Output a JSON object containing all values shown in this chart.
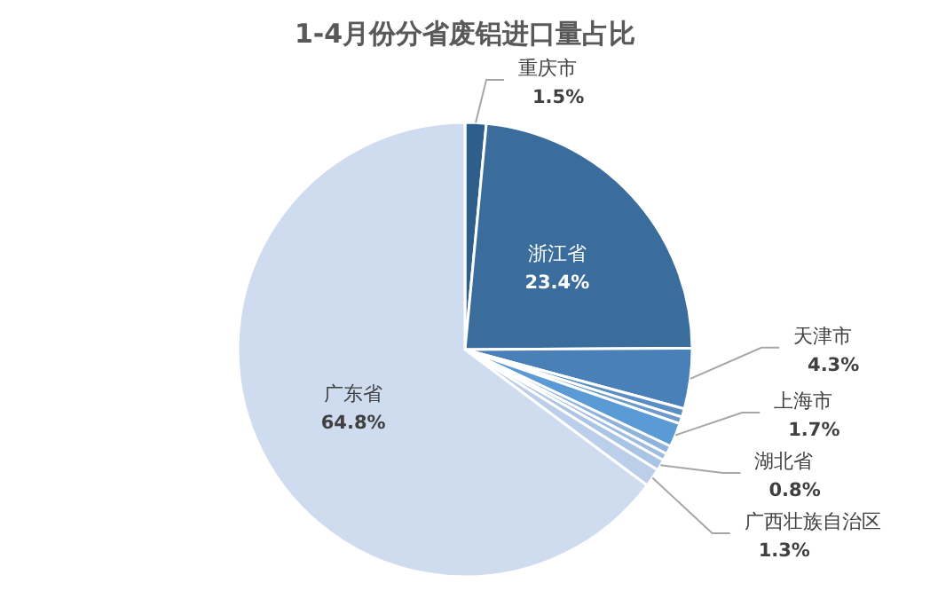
{
  "chart_data": {
    "type": "pie",
    "title": "1-4月份分省废铝进口量占比",
    "categories": [
      "重庆市",
      "浙江省",
      "天津市",
      null,
      null,
      "上海市",
      null,
      null,
      "湖北省",
      "广西壮族自治区",
      "广东省"
    ],
    "values": [
      1.5,
      23.4,
      4.3,
      0.6,
      0.5,
      1.7,
      0.6,
      0.5,
      0.8,
      1.3,
      64.8
    ],
    "colors": [
      "#2e5f8c",
      "#3b6d9c",
      "#4a80b8",
      "#5a8fc6",
      "#6a9bcc",
      "#5b9bd5",
      "#8fb3dd",
      "#9dbce2",
      "#a9c4e4",
      "#bccfea",
      "#cfdcef"
    ],
    "value_labels": [
      "1.5%",
      "23.4%",
      "4.3%",
      null,
      null,
      "1.7%",
      null,
      null,
      "0.8%",
      "1.3%",
      "64.8%"
    ]
  }
}
